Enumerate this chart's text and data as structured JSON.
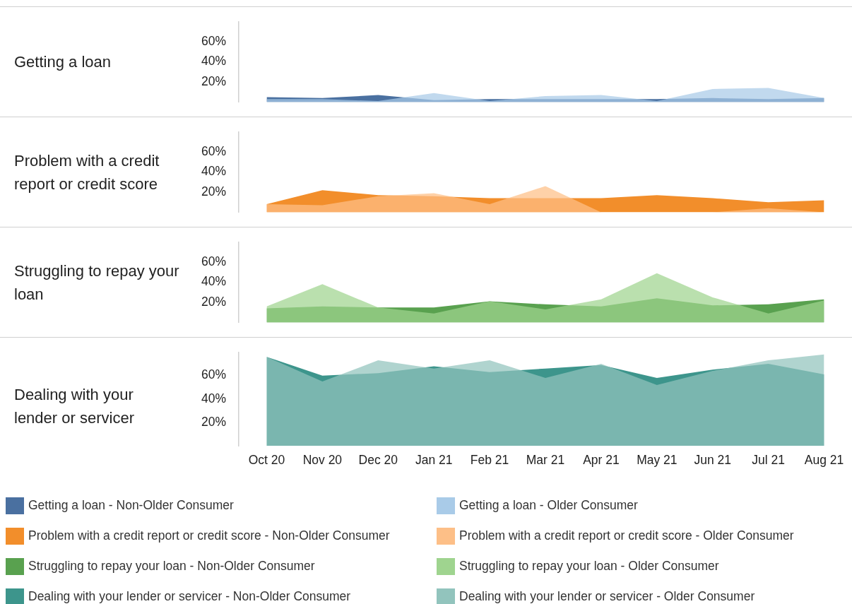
{
  "chart_data": [
    {
      "type": "area",
      "title": "Getting a loan",
      "categories": [
        "Oct 20",
        "Nov 20",
        "Dec 20",
        "Jan 21",
        "Feb 21",
        "Mar 21",
        "Apr 21",
        "May 21",
        "Jun 21",
        "Jul 21",
        "Aug 21"
      ],
      "ylim": [
        0,
        80
      ],
      "yticks": [
        {
          "value": 20,
          "label": "20%"
        },
        {
          "value": 40,
          "label": "40%"
        },
        {
          "value": 60,
          "label": "60%"
        }
      ],
      "tick_labels": "y",
      "grid": false,
      "legend": "bottom",
      "series": [
        {
          "name": "Getting a loan - Non-Older Consumer",
          "color": "#4a70a0",
          "values": [
            5,
            4,
            7,
            2,
            3,
            3,
            3,
            3,
            4,
            3,
            4
          ]
        },
        {
          "name": "Getting a loan - Older Consumer",
          "color": "#a9cbe8",
          "values": [
            3,
            3,
            1,
            9,
            1,
            6,
            7,
            1,
            13,
            14,
            4
          ]
        }
      ]
    },
    {
      "type": "area",
      "title": "Problem with a credit report or credit score",
      "categories": [
        "Oct 20",
        "Nov 20",
        "Dec 20",
        "Jan 21",
        "Feb 21",
        "Mar 21",
        "Apr 21",
        "May 21",
        "Jun 21",
        "Jul 21",
        "Aug 21"
      ],
      "ylim": [
        0,
        80
      ],
      "yticks": [
        {
          "value": 20,
          "label": "20%"
        },
        {
          "value": 40,
          "label": "40%"
        },
        {
          "value": 60,
          "label": "60%"
        }
      ],
      "tick_labels": "y",
      "grid": false,
      "legend": "bottom",
      "series": [
        {
          "name": "Problem with a credit report or credit score - Non-Older Consumer",
          "color": "#f28e2b",
          "values": [
            8,
            22,
            17,
            16,
            14,
            14,
            14,
            17,
            14,
            10,
            12
          ]
        },
        {
          "name": "Problem with a credit report or credit score - Older Consumer",
          "color": "#fdbf87",
          "values": [
            8,
            7,
            16,
            19,
            8,
            26,
            0,
            0,
            0,
            4,
            0
          ]
        }
      ]
    },
    {
      "type": "area",
      "title": "Struggling to repay your loan",
      "categories": [
        "Oct 20",
        "Nov 20",
        "Dec 20",
        "Jan 21",
        "Feb 21",
        "Mar 21",
        "Apr 21",
        "May 21",
        "Jun 21",
        "Jul 21",
        "Aug 21"
      ],
      "ylim": [
        0,
        80
      ],
      "yticks": [
        {
          "value": 20,
          "label": "20%"
        },
        {
          "value": 40,
          "label": "40%"
        },
        {
          "value": 60,
          "label": "60%"
        }
      ],
      "tick_labels": "y",
      "grid": false,
      "legend": "bottom",
      "series": [
        {
          "name": "Struggling to repay your loan - Non-Older Consumer",
          "color": "#59a14f",
          "values": [
            14,
            16,
            15,
            15,
            21,
            18,
            16,
            24,
            17,
            18,
            23
          ]
        },
        {
          "name": "Struggling to repay your loan - Older Consumer",
          "color": "#9fd48f",
          "values": [
            16,
            38,
            15,
            9,
            21,
            13,
            23,
            49,
            25,
            9,
            22
          ]
        }
      ]
    },
    {
      "type": "area",
      "title": "Dealing with your lender or servicer",
      "categories": [
        "Oct 20",
        "Nov 20",
        "Dec 20",
        "Jan 21",
        "Feb 21",
        "Mar 21",
        "Apr 21",
        "May 21",
        "Jun 21",
        "Jul 21",
        "Aug 21"
      ],
      "ylim": [
        0,
        80
      ],
      "yticks": [
        {
          "value": 20,
          "label": "20%"
        },
        {
          "value": 40,
          "label": "40%"
        },
        {
          "value": 60,
          "label": "60%"
        }
      ],
      "grid": false,
      "legend": "bottom",
      "series": [
        {
          "name": "Dealing with your lender or servicer - Non-Older Consumer",
          "color": "#3d958c",
          "values": [
            76,
            60,
            62,
            68,
            63,
            66,
            69,
            58,
            65,
            70,
            61
          ]
        },
        {
          "name": "Dealing with your lender or servicer - Older Consumer",
          "color": "#92c4bd",
          "values": [
            76,
            55,
            73,
            66,
            73,
            58,
            70,
            52,
            64,
            73,
            78
          ]
        }
      ]
    }
  ]
}
